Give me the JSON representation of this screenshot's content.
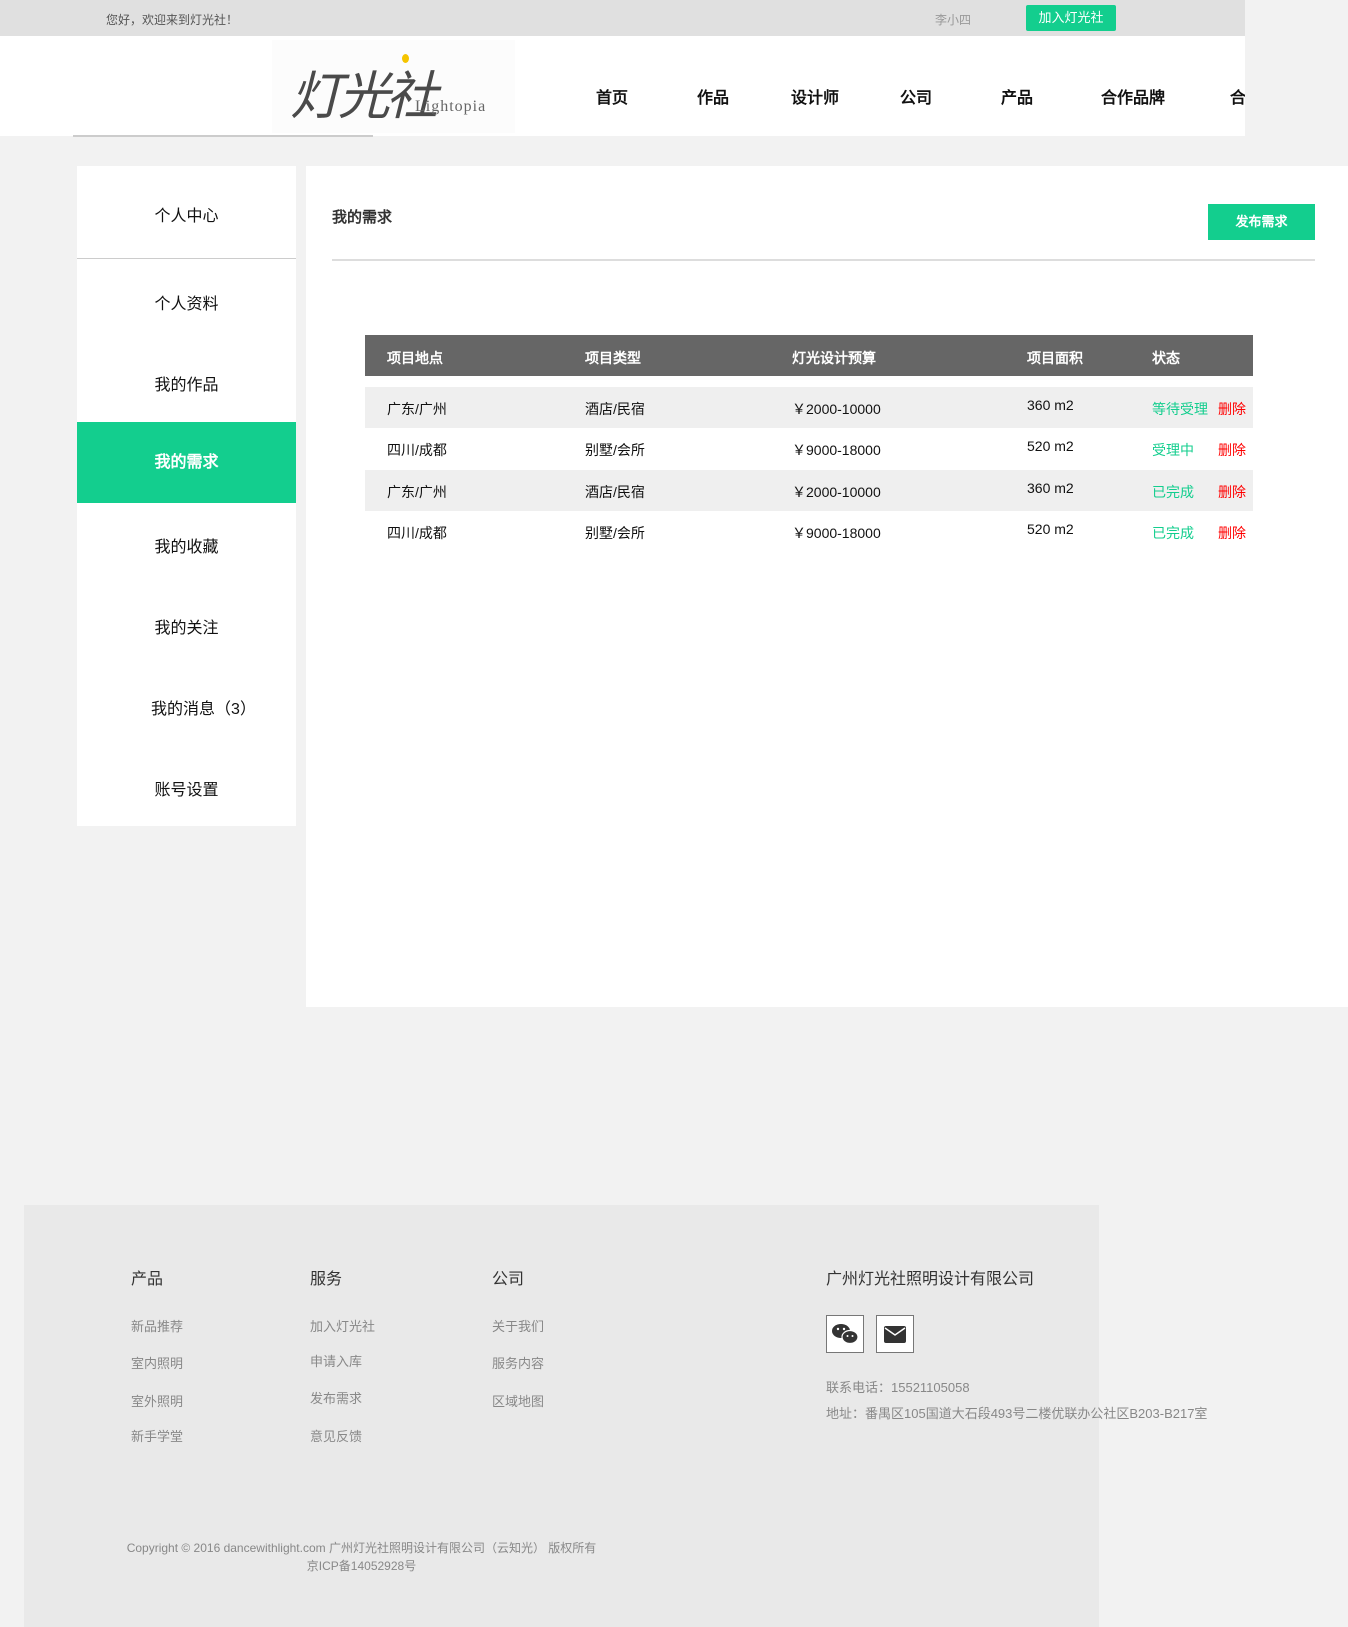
{
  "topbar": {
    "greeting": "您好，欢迎来到灯光社！",
    "username": "李小四",
    "join_button": "加入灯光社"
  },
  "logo": {
    "text": "灯光社",
    "subtitle": "Lightopia"
  },
  "nav": [
    "首页",
    "作品",
    "设计师",
    "公司",
    "产品",
    "合作品牌",
    "合"
  ],
  "sidebar": {
    "title": "个人中心",
    "items": [
      "个人资料",
      "我的作品",
      "我的需求",
      "我的收藏",
      "我的关注",
      "我的消息（3）",
      "账号设置"
    ],
    "active_index": 2
  },
  "main": {
    "title": "我的需求",
    "publish_button": "发布需求",
    "table": {
      "headers": [
        "项目地点",
        "项目类型",
        "灯光设计预算",
        "项目面积",
        "状态"
      ],
      "rows": [
        {
          "location": "广东/广州",
          "type": "酒店/民宿",
          "budget": "￥2000-10000",
          "area": "360 m2",
          "status": "等待受理",
          "action": "删除"
        },
        {
          "location": "四川/成都",
          "type": "别墅/会所",
          "budget": "￥9000-18000",
          "area": "520 m2",
          "status": "受理中",
          "action": "删除"
        },
        {
          "location": "广东/广州",
          "type": "酒店/民宿",
          "budget": "￥2000-10000",
          "area": "360 m2",
          "status": "已完成",
          "action": "删除"
        },
        {
          "location": "四川/成都",
          "type": "别墅/会所",
          "budget": "￥9000-18000",
          "area": "520 m2",
          "status": "已完成",
          "action": "删除"
        }
      ]
    }
  },
  "footer": {
    "columns": [
      {
        "heading": "产品",
        "links": [
          "新品推荐",
          "室内照明",
          "室外照明",
          "新手学堂"
        ]
      },
      {
        "heading": "服务",
        "links": [
          "加入灯光社",
          "申请入库",
          "发布需求",
          "意见反馈"
        ]
      },
      {
        "heading": "公司",
        "links": [
          "关于我们",
          "服务内容",
          "区域地图"
        ]
      }
    ],
    "company": "广州灯光社照明设计有限公司",
    "phone": "联系电话：15521105058",
    "address": "地址：番禺区105国道大石段493号二楼优联办公社区B203-B217室",
    "copyright": "Copyright © 2016 dancewithlight.com 广州灯光社照明设计有限公司（云知光） 版权所有",
    "icp": "京ICP备14052928号"
  },
  "colors": {
    "accent": "#13ce8e",
    "danger": "#ff0000",
    "table_header": "#666666"
  }
}
